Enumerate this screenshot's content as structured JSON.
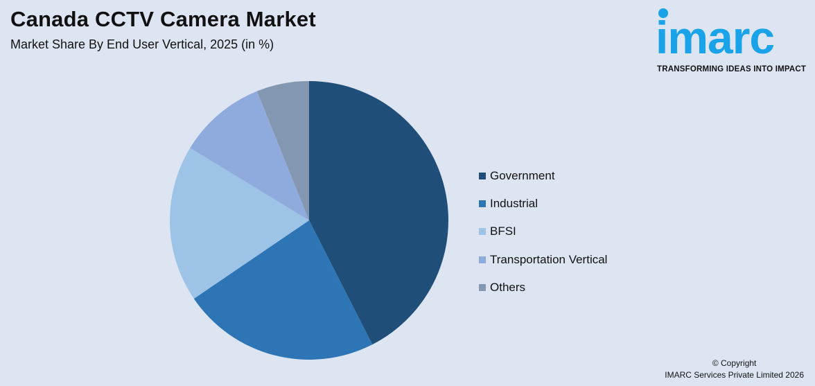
{
  "header": {
    "title": "Canada CCTV Camera Market",
    "subtitle": "Market Share By End User Vertical, 2025 (in %)"
  },
  "logo": {
    "wordmark": "imarc",
    "tagline": "TRANSFORMING IDEAS INTO IMPACT",
    "color": "#1aa3e8"
  },
  "chart_data": {
    "type": "pie",
    "title": "Canada CCTV Camera Market",
    "subtitle": "Market Share By End User Vertical, 2025 (in %)",
    "categories": [
      "Government",
      "Industrial",
      "BFSI",
      "Transportation Vertical",
      "Others"
    ],
    "values": [
      42.5,
      23.0,
      18.2,
      10.2,
      6.1
    ],
    "colors": [
      "#1f4e79",
      "#2e75b6",
      "#9dc3e6",
      "#8faadc",
      "#8497b0"
    ],
    "start_angle_deg": 0,
    "direction": "clockwise",
    "legend_position": "right"
  },
  "footer": {
    "copyright_line1": "© Copyright",
    "copyright_line2": "IMARC Services Private Limited 2026"
  }
}
